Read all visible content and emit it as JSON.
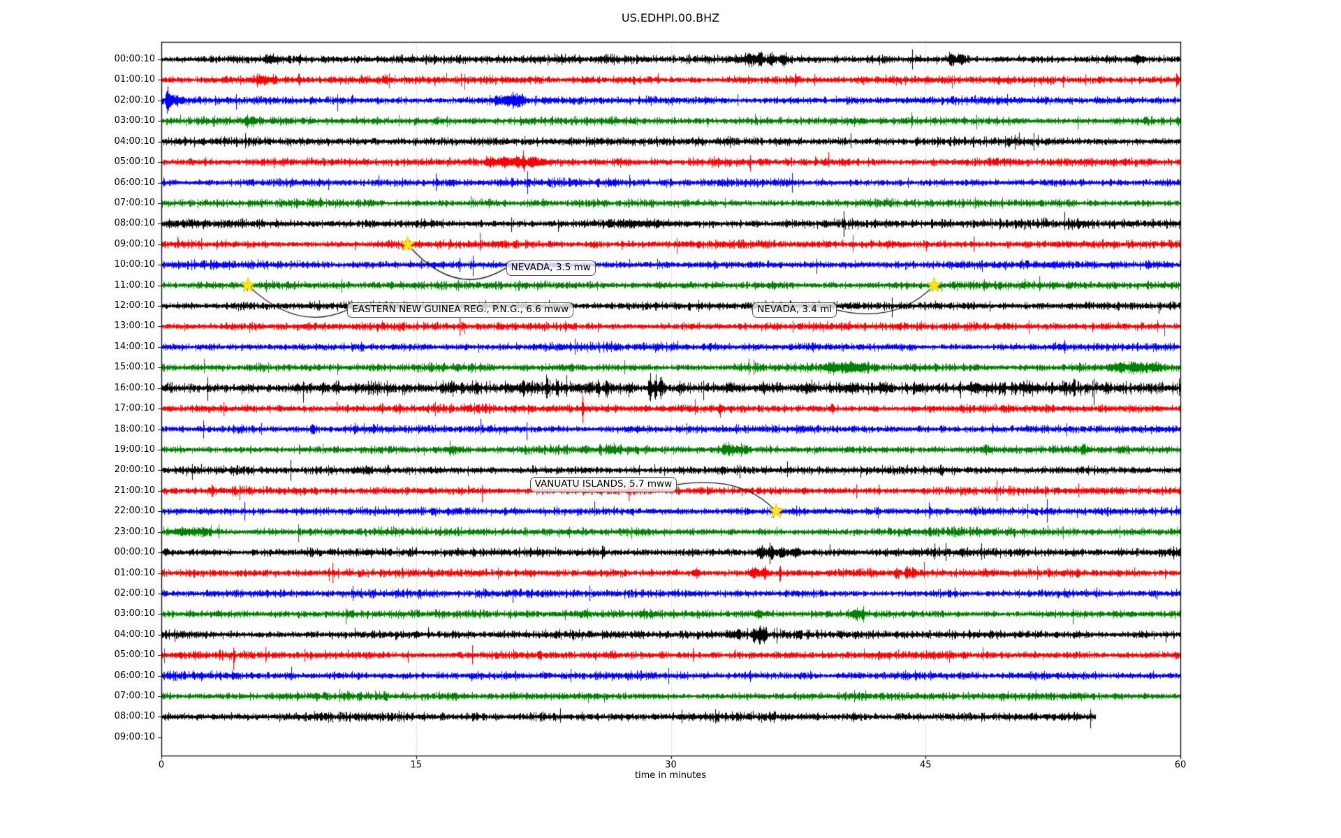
{
  "title": "US.EDHPI.00.BHZ",
  "chart_data": {
    "type": "line",
    "subtype": "seismogram-dayplot",
    "title": "US.EDHPI.00.BHZ",
    "xlabel": "time in minutes",
    "xlim": [
      0,
      60
    ],
    "x_ticks": [
      0,
      15,
      30,
      45,
      60
    ],
    "grid_minutes": [
      15,
      30,
      45
    ],
    "grid_style": "dotted-vertical",
    "legend": "none",
    "color_cycle": [
      "#000000",
      "#ff0000",
      "#0000ff",
      "#008000"
    ],
    "star_color": "#ffe60a",
    "rows": [
      {
        "label": "00:00:10",
        "noise": 1.1,
        "events": [
          [
            6.5,
            3,
            0.3
          ],
          [
            8.1,
            4,
            0.1
          ],
          [
            34.6,
            4,
            0.3
          ],
          [
            35.2,
            8,
            0.15
          ],
          [
            35.9,
            7,
            0.18
          ],
          [
            36.6,
            5,
            0.25
          ],
          [
            46.5,
            7,
            0.18
          ],
          [
            47.1,
            5,
            0.25
          ],
          [
            57.5,
            4,
            0.25
          ]
        ]
      },
      {
        "label": "01:00:10",
        "noise": 1.0,
        "events": [
          [
            5.9,
            4,
            0.4
          ],
          [
            6.6,
            5,
            0.15
          ],
          [
            8.1,
            5,
            0.1
          ],
          [
            59.8,
            8,
            0.08
          ]
        ]
      },
      {
        "label": "02:00:10",
        "noise": 1.0,
        "events": [
          [
            0.4,
            15,
            0.12
          ],
          [
            0.8,
            5,
            0.4
          ],
          [
            19.9,
            4,
            0.4
          ],
          [
            20.6,
            6,
            0.3
          ],
          [
            21.1,
            4,
            0.3
          ]
        ]
      },
      {
        "label": "03:00:10",
        "noise": 1.0,
        "events": [
          [
            5.05,
            7,
            0.08
          ],
          [
            5.4,
            3,
            0.25
          ]
        ]
      },
      {
        "label": "04:00:10",
        "noise": 1.1,
        "events": []
      },
      {
        "label": "05:00:10",
        "noise": 1.0,
        "events": [
          [
            19.4,
            4,
            0.4
          ],
          [
            20.3,
            5,
            0.35
          ],
          [
            21.0,
            6,
            0.25
          ],
          [
            21.3,
            16,
            0.07
          ],
          [
            21.8,
            6,
            0.3
          ],
          [
            22.4,
            3,
            0.4
          ],
          [
            38.5,
            5,
            0.07
          ]
        ]
      },
      {
        "label": "06:00:10",
        "noise": 1.0,
        "events": []
      },
      {
        "label": "07:00:10",
        "noise": 1.0,
        "events": []
      },
      {
        "label": "08:00:10",
        "noise": 1.15,
        "events": [
          [
            28,
            1.5,
            2
          ]
        ]
      },
      {
        "label": "09:00:10",
        "noise": 1.0,
        "events": [
          [
            14.5,
            3,
            0.15
          ]
        ]
      },
      {
        "label": "10:00:10",
        "noise": 1.0,
        "events": []
      },
      {
        "label": "11:00:10",
        "noise": 1.0,
        "events": [
          [
            5.1,
            3,
            0.15
          ],
          [
            45.5,
            3,
            0.15
          ]
        ]
      },
      {
        "label": "12:00:10",
        "noise": 1.05,
        "events": []
      },
      {
        "label": "13:00:10",
        "noise": 1.0,
        "events": []
      },
      {
        "label": "14:00:10",
        "noise": 1.0,
        "events": []
      },
      {
        "label": "15:00:10",
        "noise": 1.05,
        "events": [
          [
            39.6,
            5,
            0.5
          ],
          [
            40.5,
            6,
            0.35
          ],
          [
            41.3,
            4,
            0.4
          ],
          [
            56.3,
            4,
            0.5
          ],
          [
            57.4,
            5,
            0.45
          ],
          [
            58.4,
            4,
            0.4
          ]
        ]
      },
      {
        "label": "16:00:10",
        "noise": 1.65,
        "events": [
          [
            10.4,
            7,
            0.09
          ],
          [
            17.0,
            3,
            0.4
          ],
          [
            18.6,
            4,
            0.12
          ],
          [
            21.3,
            6,
            0.12
          ],
          [
            22.7,
            7,
            0.1
          ],
          [
            23.3,
            6,
            0.1
          ],
          [
            24.5,
            4,
            0.15
          ],
          [
            25.2,
            5,
            0.12
          ],
          [
            25.7,
            4,
            0.12
          ],
          [
            26.2,
            4,
            0.12
          ],
          [
            27.5,
            4,
            0.15
          ],
          [
            28.8,
            12,
            0.1
          ],
          [
            29.1,
            15,
            0.09
          ],
          [
            29.4,
            12,
            0.1
          ],
          [
            30.5,
            5,
            0.15
          ],
          [
            33.5,
            3,
            0.3
          ],
          [
            35.5,
            4,
            0.2
          ],
          [
            38.0,
            3,
            0.3
          ],
          [
            40.5,
            3,
            0.4
          ],
          [
            42.5,
            3,
            0.4
          ],
          [
            44.5,
            3,
            0.3
          ],
          [
            48.0,
            3,
            0.4
          ],
          [
            51.0,
            3,
            0.3
          ]
        ]
      },
      {
        "label": "17:00:10",
        "noise": 1.0,
        "events": [
          [
            18.6,
            6,
            0.07
          ],
          [
            24.8,
            13,
            0.07
          ],
          [
            32.9,
            6,
            0.08
          ],
          [
            39.5,
            6,
            0.08
          ]
        ]
      },
      {
        "label": "18:00:10",
        "noise": 1.0,
        "events": [
          [
            8.9,
            6,
            0.1
          ],
          [
            11.4,
            6,
            0.09
          ]
        ]
      },
      {
        "label": "19:00:10",
        "noise": 1.05,
        "events": [
          [
            17.1,
            4,
            0.25
          ],
          [
            26.5,
            3,
            0.3
          ],
          [
            33.3,
            5,
            0.35
          ],
          [
            34.1,
            4,
            0.3
          ],
          [
            48.5,
            3,
            0.3
          ],
          [
            54.3,
            6,
            0.12
          ]
        ]
      },
      {
        "label": "20:00:10",
        "noise": 1.05,
        "events": []
      },
      {
        "label": "21:00:10",
        "noise": 1.0,
        "events": [
          [
            3.0,
            4,
            0.12
          ]
        ]
      },
      {
        "label": "22:00:10",
        "noise": 1.0,
        "events": [
          [
            36.2,
            2.5,
            0.3
          ]
        ]
      },
      {
        "label": "23:00:10",
        "noise": 1.05,
        "events": [
          [
            1.2,
            3,
            0.7
          ],
          [
            2.4,
            3,
            0.5
          ]
        ]
      },
      {
        "label": "00:00:10",
        "noise": 1.1,
        "events": [
          [
            26.0,
            7,
            0.08
          ],
          [
            35.3,
            6,
            0.25
          ],
          [
            35.9,
            7,
            0.15
          ],
          [
            36.5,
            4,
            0.25
          ],
          [
            37.3,
            4,
            0.2
          ]
        ]
      },
      {
        "label": "01:00:10",
        "noise": 1.0,
        "events": [
          [
            31.5,
            5,
            0.2
          ],
          [
            34.9,
            5,
            0.3
          ],
          [
            35.5,
            7,
            0.12
          ],
          [
            36.4,
            10,
            0.07
          ],
          [
            43.3,
            4,
            0.2
          ],
          [
            43.9,
            6,
            0.12
          ],
          [
            44.3,
            4,
            0.15
          ]
        ]
      },
      {
        "label": "02:00:10",
        "noise": 1.0,
        "events": []
      },
      {
        "label": "03:00:10",
        "noise": 1.0,
        "events": [
          [
            35.2,
            4,
            0.2
          ],
          [
            40.9,
            4,
            0.3
          ],
          [
            41.3,
            9,
            0.07
          ]
        ]
      },
      {
        "label": "04:00:10",
        "noise": 1.1,
        "events": [
          [
            33.6,
            3,
            0.3
          ],
          [
            34.0,
            9,
            0.07
          ],
          [
            34.9,
            7,
            0.15
          ],
          [
            35.2,
            12,
            0.09
          ],
          [
            35.5,
            7,
            0.15
          ]
        ]
      },
      {
        "label": "05:00:10",
        "noise": 1.0,
        "events": []
      },
      {
        "label": "06:00:10",
        "noise": 1.0,
        "events": []
      },
      {
        "label": "07:00:10",
        "noise": 1.0,
        "events": []
      },
      {
        "label": "08:00:10",
        "noise": 1.1,
        "end_minute": 55,
        "events": []
      },
      {
        "label": "09:00:10",
        "no_trace": true,
        "events": []
      }
    ],
    "annotations": [
      {
        "text": "NEVADA, 3.5 mw",
        "star_minute": 14.5,
        "star_row": 9,
        "box_minute": 20.3,
        "box_row": 10.15,
        "connect_side": "left",
        "ctrl_minute": 17.3,
        "ctrl_row": 11.7
      },
      {
        "text": "EASTERN NEW GUINEA REG., P.N.G., 6.6 mww",
        "star_minute": 5.1,
        "star_row": 11,
        "box_minute": 10.95,
        "box_row": 12.2,
        "connect_side": "left",
        "ctrl_minute": 8.0,
        "ctrl_row": 13.3
      },
      {
        "text": "NEVADA, 3.4 ml",
        "star_minute": 45.5,
        "star_row": 11,
        "box_minute": 34.8,
        "box_row": 12.2,
        "connect_side": "right",
        "ctrl_minute": 43.3,
        "ctrl_row": 12.9
      },
      {
        "text": "VANUATU ISLANDS, 5.7 mww",
        "star_minute": 36.2,
        "star_row": 22,
        "box_minute": 21.7,
        "box_row": 20.7,
        "connect_side": "right",
        "ctrl_minute": 34.2,
        "ctrl_row": 20.2
      }
    ]
  }
}
